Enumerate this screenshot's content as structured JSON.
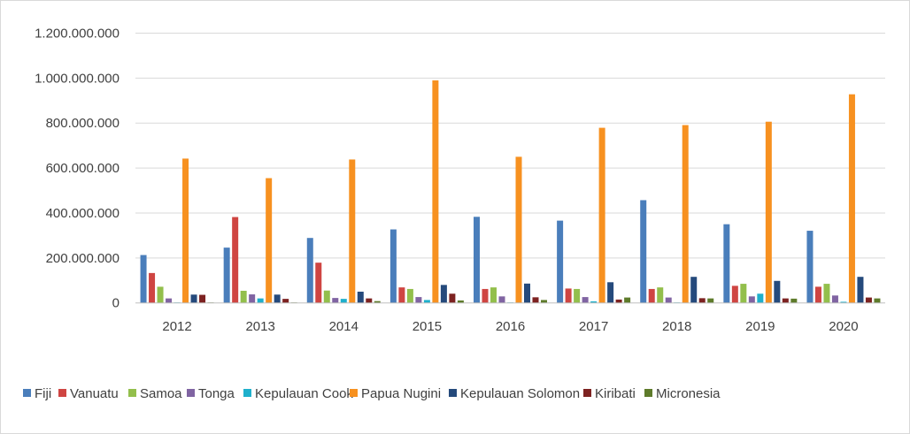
{
  "chart_data": {
    "type": "bar",
    "title": "",
    "xlabel": "",
    "ylabel": "",
    "ylim": [
      0,
      1200000000
    ],
    "yticks": [
      0,
      200000000,
      400000000,
      600000000,
      800000000,
      1000000000,
      1200000000
    ],
    "ytick_labels": [
      "0",
      "200.000.000",
      "400.000.000",
      "600.000.000",
      "800.000.000",
      "1.000.000.000",
      "1.200.000.000"
    ],
    "grid": true,
    "legend_position": "bottom",
    "categories": [
      "2012",
      "2013",
      "2014",
      "2015",
      "2016",
      "2017",
      "2018",
      "2019",
      "2020"
    ],
    "series": [
      {
        "name": "Fiji",
        "color": "#4a7ebb",
        "values": [
          213000000,
          246000000,
          289000000,
          327000000,
          383000000,
          366000000,
          457000000,
          350000000,
          321000000
        ]
      },
      {
        "name": "Vanuatu",
        "color": "#cf4542",
        "values": [
          133000000,
          382000000,
          179000000,
          69000000,
          62000000,
          64000000,
          62000000,
          76000000,
          72000000
        ]
      },
      {
        "name": "Samoa",
        "color": "#93bf4c",
        "values": [
          72000000,
          54000000,
          55000000,
          62000000,
          69000000,
          62000000,
          69000000,
          85000000,
          85000000
        ]
      },
      {
        "name": "Tonga",
        "color": "#8064a2",
        "values": [
          20000000,
          38000000,
          22000000,
          26000000,
          29000000,
          26000000,
          24000000,
          29000000,
          33000000
        ]
      },
      {
        "name": "Kepulauan Cook",
        "color": "#1fb0cc",
        "values": [
          2000000,
          20000000,
          18000000,
          13000000,
          2000000,
          7000000,
          2000000,
          41000000,
          5000000
        ]
      },
      {
        "name": "Papua Nugini",
        "color": "#f79120",
        "values": [
          642000000,
          555000000,
          638000000,
          990000000,
          650000000,
          779000000,
          791000000,
          806000000,
          928000000
        ]
      },
      {
        "name": "Kepulauan Solomon",
        "color": "#254a7c",
        "values": [
          37000000,
          37000000,
          50000000,
          80000000,
          86000000,
          92000000,
          116000000,
          98000000,
          116000000
        ]
      },
      {
        "name": "Kiribati",
        "color": "#7d2221",
        "values": [
          36000000,
          18000000,
          20000000,
          41000000,
          25000000,
          15000000,
          21000000,
          20000000,
          24000000
        ]
      },
      {
        "name": "Micronesia",
        "color": "#5e7b2b",
        "values": [
          2000000,
          2000000,
          8000000,
          11000000,
          13000000,
          24000000,
          20000000,
          19000000,
          20000000
        ]
      }
    ]
  }
}
